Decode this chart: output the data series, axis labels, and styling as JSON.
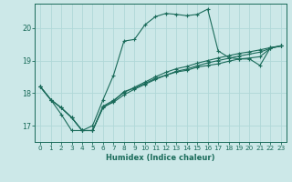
{
  "xlabel": "Humidex (Indice chaleur)",
  "bg_color": "#cce8e8",
  "line_color": "#1a6b5a",
  "grid_color": "#b0d8d8",
  "xlim": [
    -0.5,
    23.5
  ],
  "ylim": [
    16.5,
    20.75
  ],
  "yticks": [
    17,
    18,
    19,
    20
  ],
  "xticks": [
    0,
    1,
    2,
    3,
    4,
    5,
    6,
    7,
    8,
    9,
    10,
    11,
    12,
    13,
    14,
    15,
    16,
    17,
    18,
    19,
    20,
    21,
    22,
    23
  ],
  "series": [
    [
      18.2,
      17.8,
      17.35,
      16.85,
      16.85,
      17.0,
      17.8,
      18.55,
      19.6,
      19.65,
      20.1,
      20.35,
      20.45,
      20.42,
      20.38,
      20.42,
      20.58,
      19.3,
      19.1,
      19.05,
      19.05,
      18.85,
      19.4,
      19.45
    ],
    [
      18.2,
      17.8,
      17.55,
      17.25,
      16.85,
      16.85,
      17.55,
      17.75,
      18.05,
      18.15,
      18.3,
      18.45,
      18.55,
      18.65,
      18.7,
      18.8,
      18.85,
      18.9,
      18.98,
      19.05,
      19.08,
      19.12,
      19.38,
      19.45
    ],
    [
      18.2,
      17.8,
      17.55,
      17.25,
      16.85,
      16.85,
      17.6,
      17.78,
      18.02,
      18.18,
      18.34,
      18.5,
      18.64,
      18.75,
      18.82,
      18.92,
      19.0,
      19.08,
      19.15,
      19.22,
      19.27,
      19.33,
      19.4,
      19.45
    ],
    [
      18.2,
      17.8,
      17.55,
      17.25,
      16.85,
      16.85,
      17.58,
      17.72,
      17.95,
      18.12,
      18.27,
      18.42,
      18.55,
      18.67,
      18.74,
      18.84,
      18.93,
      19.0,
      19.07,
      19.14,
      19.2,
      19.26,
      19.38,
      19.45
    ]
  ]
}
